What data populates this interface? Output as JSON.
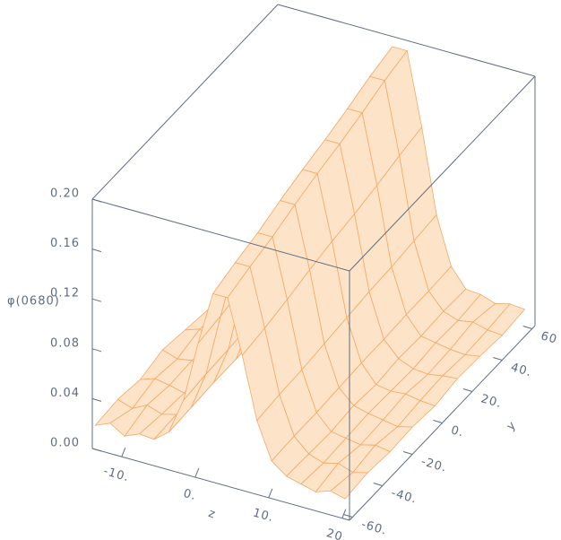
{
  "chart_data": {
    "type": "surface3d",
    "zlabel": "φ(0680)",
    "xlabel": "z",
    "ylabel": "y",
    "x": [
      -14,
      -12,
      -10,
      -8,
      -6,
      -4,
      -2,
      0,
      2,
      4,
      6,
      8,
      10,
      12,
      14,
      16,
      18,
      20
    ],
    "y": [
      -60,
      -45,
      -30,
      -15,
      0,
      15,
      30,
      45,
      60
    ],
    "values": [
      [
        0.016,
        0.021,
        0.014,
        0.019,
        0.018,
        0.027,
        0.056,
        0.105,
        0.148,
        0.148,
        0.105,
        0.056,
        0.027,
        0.018,
        0.015,
        0.012,
        0.016,
        0.013
      ],
      [
        0.018,
        0.014,
        0.02,
        0.016,
        0.019,
        0.028,
        0.058,
        0.108,
        0.154,
        0.154,
        0.108,
        0.058,
        0.028,
        0.017,
        0.013,
        0.016,
        0.012,
        0.015
      ],
      [
        0.015,
        0.019,
        0.017,
        0.014,
        0.021,
        0.029,
        0.059,
        0.112,
        0.159,
        0.159,
        0.112,
        0.059,
        0.028,
        0.016,
        0.014,
        0.012,
        0.015,
        0.013
      ],
      [
        0.02,
        0.016,
        0.018,
        0.015,
        0.018,
        0.029,
        0.061,
        0.117,
        0.166,
        0.166,
        0.117,
        0.061,
        0.029,
        0.018,
        0.015,
        0.013,
        0.011,
        0.014
      ],
      [
        0.017,
        0.021,
        0.015,
        0.019,
        0.02,
        0.03,
        0.063,
        0.121,
        0.172,
        0.172,
        0.121,
        0.063,
        0.03,
        0.016,
        0.014,
        0.015,
        0.013,
        0.012
      ],
      [
        0.014,
        0.018,
        0.02,
        0.016,
        0.019,
        0.03,
        0.065,
        0.124,
        0.177,
        0.177,
        0.124,
        0.065,
        0.03,
        0.018,
        0.013,
        0.012,
        0.014,
        0.015
      ],
      [
        0.019,
        0.015,
        0.017,
        0.02,
        0.018,
        0.031,
        0.066,
        0.128,
        0.183,
        0.183,
        0.128,
        0.066,
        0.031,
        0.017,
        0.015,
        0.013,
        0.012,
        0.014
      ],
      [
        0.016,
        0.02,
        0.014,
        0.017,
        0.021,
        0.031,
        0.068,
        0.133,
        0.19,
        0.19,
        0.133,
        0.068,
        0.031,
        0.018,
        0.014,
        0.016,
        0.013,
        0.012
      ],
      [
        0.018,
        0.015,
        0.019,
        0.016,
        0.019,
        0.032,
        0.07,
        0.137,
        0.195,
        0.195,
        0.137,
        0.07,
        0.032,
        0.017,
        0.016,
        0.012,
        0.015,
        0.014
      ]
    ],
    "color": "#f5a865",
    "fill": "#fde3c8",
    "xlim": [
      -14,
      21
    ],
    "ylim": [
      -62,
      62
    ],
    "zlim": [
      0,
      0.2
    ],
    "xticks": [
      {
        "value": -10,
        "label": "-10."
      },
      {
        "value": 0,
        "label": "0."
      },
      {
        "value": 10,
        "label": "10."
      },
      {
        "value": 20,
        "label": "20."
      }
    ],
    "yticks": [
      {
        "value": -60,
        "label": "-60."
      },
      {
        "value": -40,
        "label": "-40."
      },
      {
        "value": -20,
        "label": "-20."
      },
      {
        "value": 0,
        "label": "0."
      },
      {
        "value": 20,
        "label": "20."
      },
      {
        "value": 40,
        "label": "40."
      },
      60
    ],
    "zticks": [
      {
        "value": 0,
        "label": "0.00"
      },
      {
        "value": 0.04,
        "label": "0.04"
      },
      {
        "value": 0.08,
        "label": "0.08"
      },
      {
        "value": 0.12,
        "label": "0.12"
      },
      {
        "value": 0.16,
        "label": "0.16"
      },
      {
        "value": 0.2,
        "label": "0.20"
      }
    ]
  }
}
